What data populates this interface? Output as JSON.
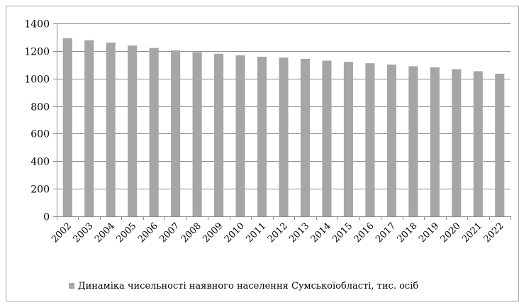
{
  "chart_data": {
    "type": "bar",
    "title": "",
    "xlabel": "",
    "ylabel": "",
    "ylim": [
      0,
      1400
    ],
    "yticks": [
      0,
      200,
      400,
      600,
      800,
      1000,
      1200,
      1400
    ],
    "grid": true,
    "legend_position": "bottom",
    "bar_color": "#a6a6a6",
    "categories": [
      "2002",
      "2003",
      "2004",
      "2005",
      "2006",
      "2007",
      "2008",
      "2009",
      "2010",
      "2011",
      "2012",
      "2013",
      "2014",
      "2015",
      "2016",
      "2017",
      "2018",
      "2019",
      "2020",
      "2021",
      "2022"
    ],
    "series": [
      {
        "name": "Динаміка чисельності наявного населення Сумськоїобласті, тис. осіб",
        "values": [
          1293,
          1278,
          1261,
          1239,
          1222,
          1204,
          1191,
          1180,
          1168,
          1158,
          1152,
          1143,
          1130,
          1121,
          1111,
          1101,
          1089,
          1081,
          1068,
          1053,
          1035
        ]
      }
    ]
  }
}
